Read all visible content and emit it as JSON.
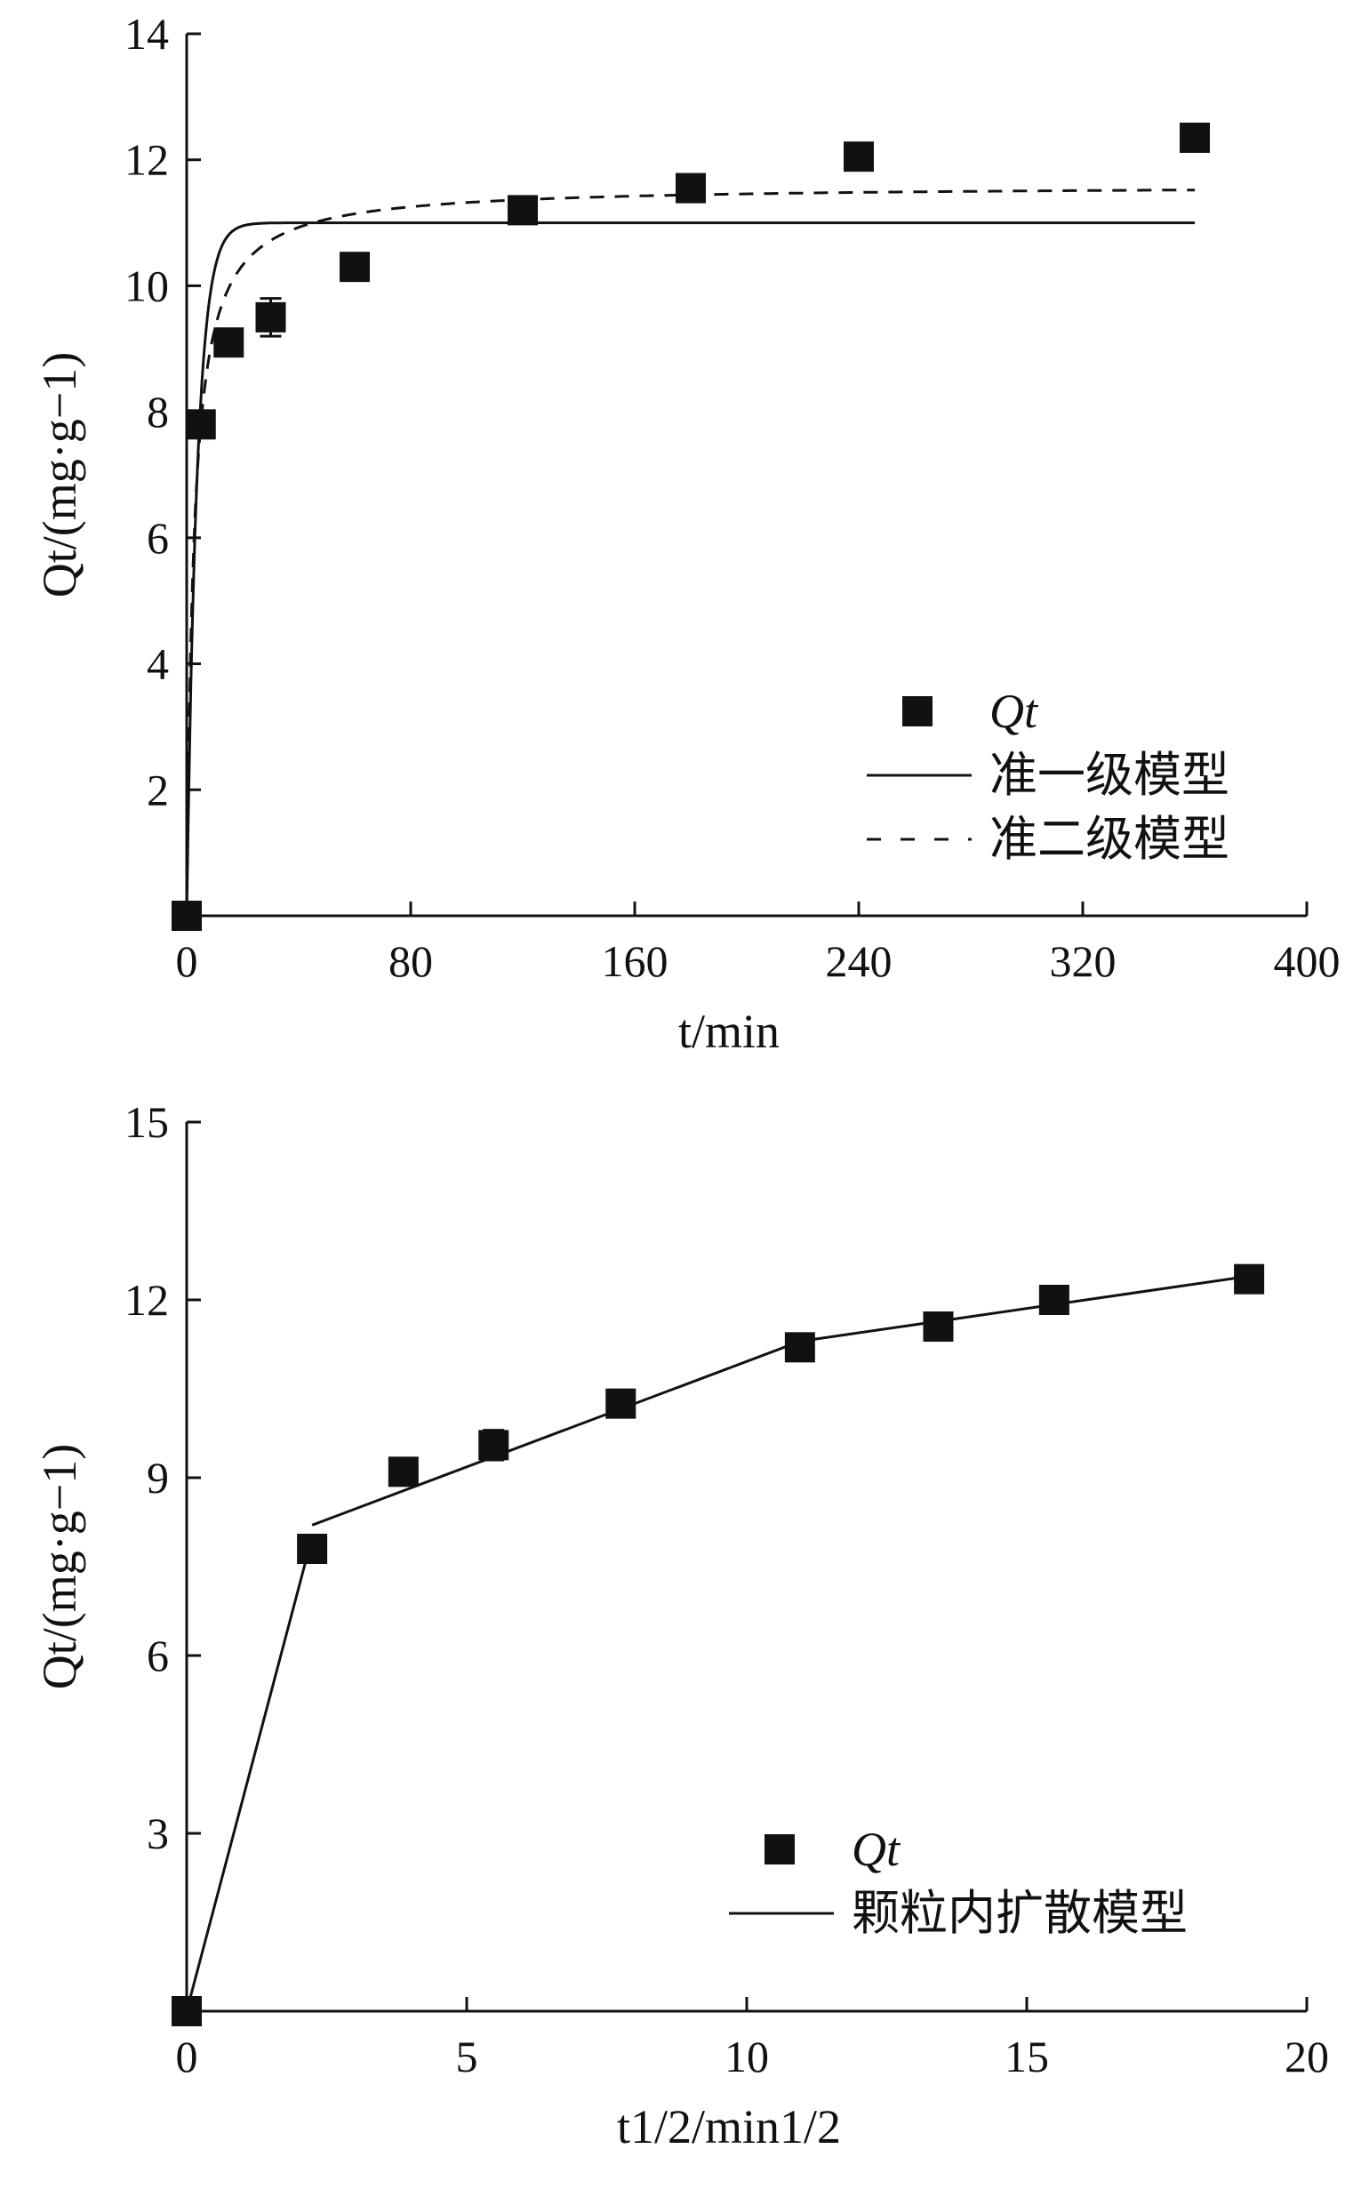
{
  "chart_data": [
    {
      "type": "scatter",
      "xlabel": "t/min",
      "xlabel_var": "t",
      "xlabel_unit": "/min",
      "ylabel": "Qt/(mg·g−1)",
      "xlim": [
        0,
        400
      ],
      "ylim": [
        0,
        14
      ],
      "xticks": [
        "0",
        "80",
        "160",
        "240",
        "320",
        "400"
      ],
      "yticks": [
        "2",
        "4",
        "6",
        "8",
        "10",
        "12",
        "14"
      ],
      "legend_position": "bottom-right",
      "series": [
        {
          "name": "Qt",
          "kind": "points",
          "x": [
            0,
            5,
            15,
            30,
            60,
            120,
            180,
            240,
            360
          ],
          "y": [
            0,
            7.8,
            9.1,
            9.5,
            10.3,
            11.2,
            11.55,
            12.05,
            12.35
          ],
          "error": [
            0,
            0,
            0,
            0.3,
            0,
            0,
            0,
            0,
            0
          ]
        },
        {
          "name": "准一级模型",
          "kind": "line",
          "style": "solid",
          "model": "pfo",
          "qe": 11.0,
          "k": 0.27,
          "x_range": [
            0,
            360
          ]
        },
        {
          "name": "准二级模型",
          "kind": "line",
          "style": "dashed",
          "model": "pso",
          "qe": 11.6,
          "k": 0.035,
          "x_range": [
            0,
            360
          ]
        }
      ]
    },
    {
      "type": "scatter",
      "xlabel": "t1/2/min1/2",
      "ylabel": "Qt/(mg·g−1)",
      "xlim": [
        0,
        20
      ],
      "ylim": [
        0,
        15
      ],
      "xticks": [
        "0",
        "5",
        "10",
        "15",
        "20"
      ],
      "yticks": [
        "3",
        "6",
        "9",
        "12",
        "15"
      ],
      "legend_position": "bottom-right",
      "series": [
        {
          "name": "Qt",
          "kind": "points",
          "x": [
            0,
            2.24,
            3.87,
            5.48,
            7.75,
            10.95,
            13.42,
            15.49,
            18.97
          ],
          "y": [
            0,
            7.8,
            9.1,
            9.55,
            10.25,
            11.2,
            11.55,
            12.0,
            12.35
          ],
          "error": [
            0,
            0,
            0,
            0.25,
            0,
            0,
            0,
            0,
            0
          ]
        },
        {
          "name": "颗粒内扩散模型",
          "kind": "line",
          "style": "solid",
          "segments": [
            [
              [
                0,
                0
              ],
              [
                2.24,
                8.0
              ]
            ],
            [
              [
                2.24,
                8.2
              ],
              [
                10.95,
                11.3
              ]
            ],
            [
              [
                10.95,
                11.3
              ],
              [
                18.97,
                12.4
              ]
            ]
          ]
        }
      ]
    }
  ]
}
